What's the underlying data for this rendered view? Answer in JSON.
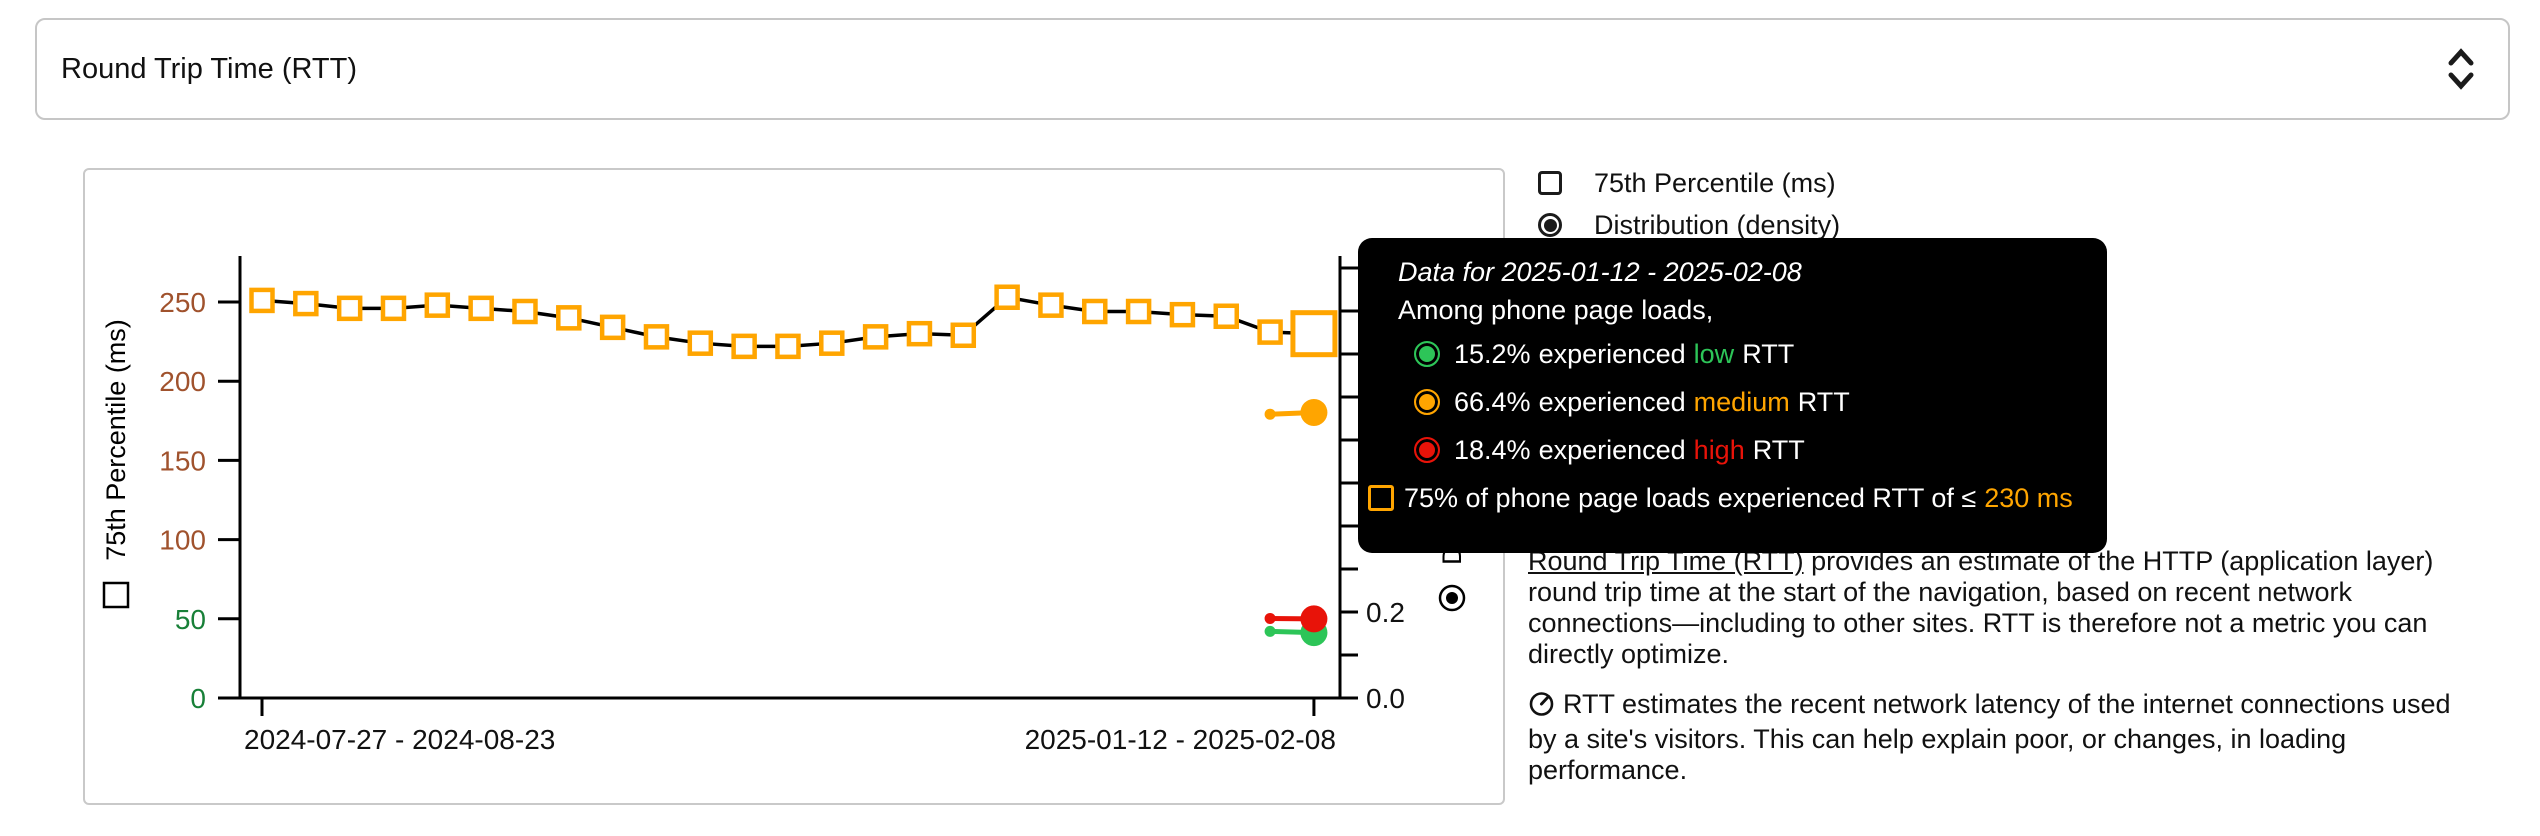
{
  "colors": {
    "orange": "#FFA500",
    "red": "#E81309",
    "green": "#2DC558",
    "axis_green": "#188038",
    "axis_brown": "#A0522D",
    "line": "#000000",
    "tooltip_bg": "#000000"
  },
  "metric_selector": {
    "label": "Round Trip Time (RTT)",
    "icon": "unfold-more"
  },
  "legend": {
    "items": [
      {
        "type": "checkbox",
        "checked": false,
        "label": "75th Percentile (ms)"
      },
      {
        "type": "radio",
        "checked": true,
        "label": "Distribution (density)"
      }
    ]
  },
  "tooltip": {
    "title": "Data for 2025-01-12 - 2025-02-08",
    "subtitle": "Among phone page loads,",
    "rows": [
      {
        "color": "#2DC558",
        "pct": "15.2%",
        "mid": "experienced",
        "rating": "low",
        "tail": "RTT"
      },
      {
        "color": "#FFA500",
        "pct": "66.4%",
        "mid": "experienced",
        "rating": "medium",
        "tail": "RTT"
      },
      {
        "color": "#E81309",
        "pct": "18.4%",
        "mid": "experienced",
        "rating": "high",
        "tail": "RTT"
      }
    ],
    "threshold": {
      "pre": "75% of phone page loads experienced RTT of ≤",
      "value": "230 ms"
    }
  },
  "chart_data": {
    "type": "line",
    "title": "",
    "x_axis": {
      "ticks": [
        {
          "index": 0,
          "label": "2024-07-27 - 2024-08-23",
          "anchor": "start"
        },
        {
          "index": 24,
          "label": "2025-01-12 - 2025-02-08",
          "anchor": "end"
        }
      ]
    },
    "y_axis_left": {
      "label": "75th Percentile (ms)",
      "ticks": [
        0,
        50,
        100,
        150,
        200,
        250
      ],
      "tick_colors": [
        "green",
        "green",
        "brown",
        "brown",
        "brown",
        "brown"
      ],
      "range": [
        0,
        280
      ]
    },
    "y_axis_right": {
      "label": "Distribution (density)",
      "tick_step": 0.1,
      "max": 1.0,
      "labeled_ticks": [
        {
          "v": 0.0,
          "t": "0.0"
        },
        {
          "v": 0.2,
          "t": "0.2"
        }
      ]
    },
    "series": [
      {
        "name": "75th Percentile (ms)",
        "marker": "square",
        "color": "#FFA500",
        "values": [
          251,
          249,
          246,
          246,
          248,
          246,
          244,
          240,
          234,
          228,
          224,
          222,
          222,
          224,
          228,
          230,
          229,
          253,
          248,
          244,
          244,
          242,
          241,
          231,
          230
        ],
        "last_point_emphasized": true
      }
    ],
    "density_series": [
      {
        "name": "medium",
        "color": "#FFA500",
        "x_indices": [
          23,
          24
        ],
        "values": [
          0.66,
          0.664
        ]
      },
      {
        "name": "low",
        "color": "#2DC558",
        "x_indices": [
          23,
          24
        ],
        "values": [
          0.155,
          0.152
        ]
      },
      {
        "name": "high",
        "color": "#E81309",
        "x_indices": [
          23,
          24
        ],
        "values": [
          0.185,
          0.184
        ]
      }
    ]
  },
  "description": {
    "p1_link": "Round Trip Time (RTT)",
    "p1_rest": " provides an estimate of the HTTP (application layer)\nround trip time at the start of the navigation, based on recent network\nconnections—including to other sites. RTT is therefore not a metric you can\ndirectly optimize.",
    "p2": "RTT estimates the recent network latency of the internet connections used\nby a site's visitors. This can help explain poor, or changes, in loading\nperformance."
  }
}
